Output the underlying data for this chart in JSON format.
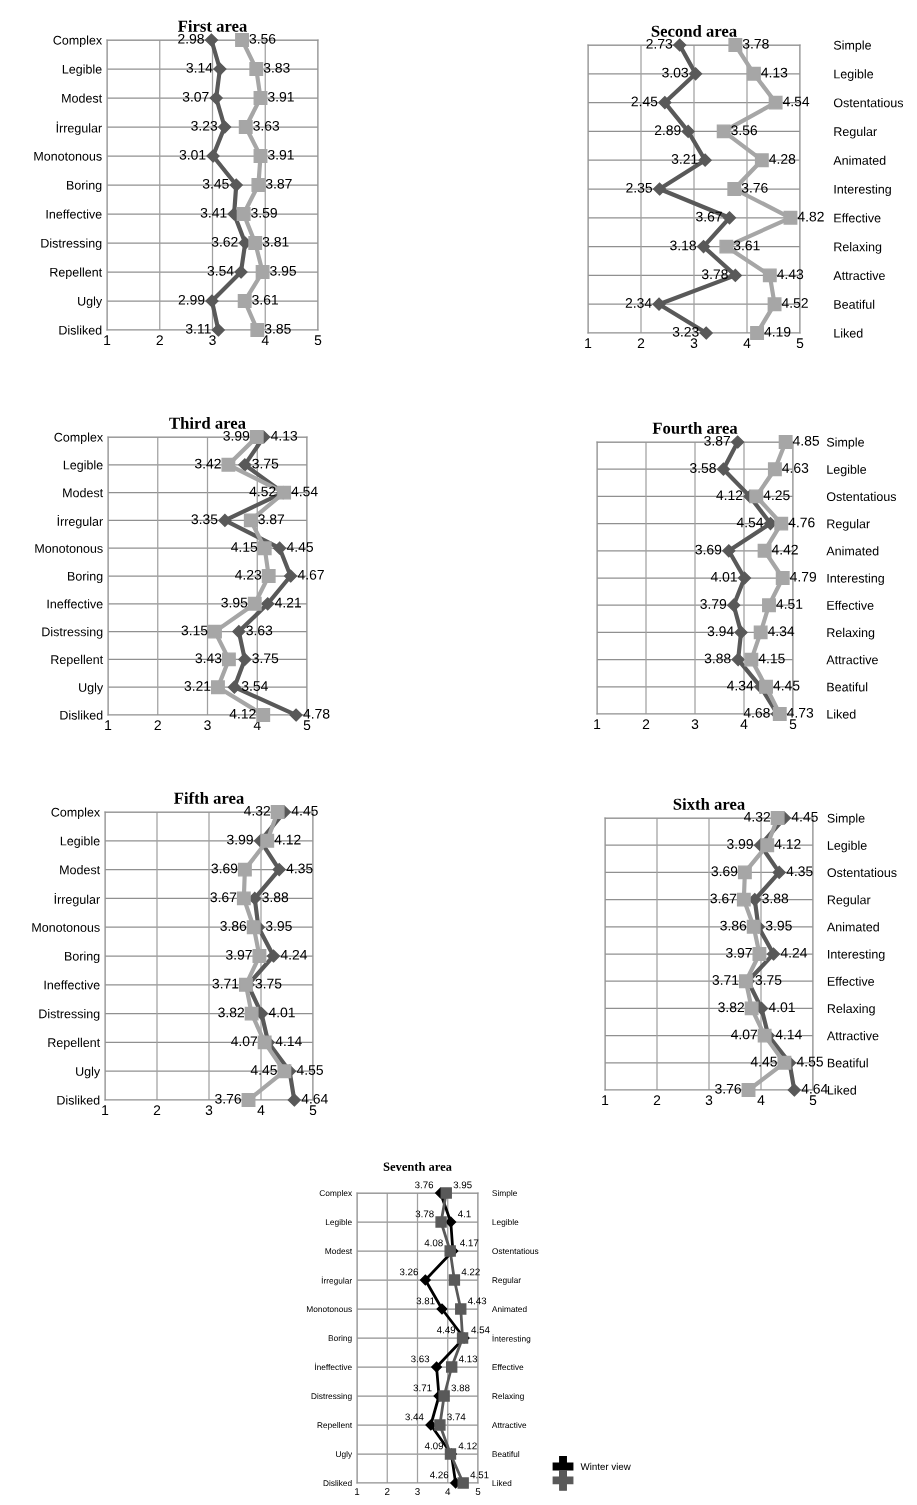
{
  "chart_data": [
    {
      "type": "line",
      "orientation": "horizontal",
      "title": "First area",
      "categories": [
        "Complex",
        "Legible",
        "Modest",
        "İrregular",
        "Monotonous",
        "Boring",
        "Ineffective",
        "Distressing",
        "Repellent",
        "Ugly",
        "Disliked"
      ],
      "xlim": [
        1,
        5
      ],
      "xticks": [
        1,
        2,
        3,
        4,
        5
      ],
      "grid": true,
      "data_labels": true,
      "series": [
        {
          "color": "#595959",
          "marker": "diamond",
          "values": [
            2.98,
            3.14,
            3.07,
            3.23,
            3.01,
            3.45,
            3.41,
            3.62,
            3.54,
            2.99,
            3.11
          ]
        },
        {
          "color": "#a6a6a6",
          "marker": "square",
          "values": [
            3.56,
            3.83,
            3.91,
            3.63,
            3.91,
            3.87,
            3.59,
            3.81,
            3.95,
            3.61,
            3.85
          ]
        }
      ]
    },
    {
      "type": "line",
      "orientation": "horizontal",
      "title": "Second area",
      "categories": [
        null,
        null,
        null,
        null,
        null,
        null,
        null,
        null,
        null,
        null,
        null
      ],
      "y2_categories": [
        "Simple",
        "Legible",
        "Ostentatious",
        "Regular",
        "Animated",
        "Interesting",
        "Effective",
        "Relaxing",
        "Attractive",
        "Beatiful",
        "Liked"
      ],
      "xlim": [
        1,
        5
      ],
      "xticks": [
        1,
        2,
        3,
        4,
        5
      ],
      "grid": true,
      "data_labels": true,
      "series": [
        {
          "color": "#595959",
          "marker": "diamond",
          "values": [
            2.73,
            3.03,
            2.45,
            2.89,
            3.21,
            2.35,
            3.67,
            3.18,
            3.78,
            2.34,
            3.23
          ]
        },
        {
          "color": "#a6a6a6",
          "marker": "square",
          "values": [
            3.78,
            4.13,
            4.54,
            3.56,
            4.28,
            3.76,
            4.82,
            3.61,
            4.43,
            4.52,
            4.19
          ]
        }
      ]
    },
    {
      "type": "line",
      "orientation": "horizontal",
      "title": "Third area",
      "categories": [
        "Complex",
        "Legible",
        "Modest",
        "İrregular",
        "Monotonous",
        "Boring",
        "Ineffective",
        "Distressing",
        "Repellent",
        "Ugly",
        "Disliked"
      ],
      "xlim": [
        1,
        5
      ],
      "xticks": [
        1,
        2,
        3,
        4,
        5
      ],
      "grid": true,
      "data_labels": true,
      "series": [
        {
          "color": "#595959",
          "marker": "diamond",
          "values": [
            4.13,
            3.75,
            4.52,
            3.35,
            4.45,
            4.67,
            4.21,
            3.63,
            3.75,
            3.54,
            4.78
          ]
        },
        {
          "color": "#a6a6a6",
          "marker": "square",
          "values": [
            3.99,
            3.42,
            4.54,
            3.87,
            4.15,
            4.23,
            3.95,
            3.15,
            3.43,
            3.21,
            4.12
          ]
        }
      ]
    },
    {
      "type": "line",
      "orientation": "horizontal",
      "title": "Fourth area",
      "categories": [
        null,
        null,
        null,
        null,
        null,
        null,
        null,
        null,
        null,
        null,
        null
      ],
      "y2_categories": [
        "Simple",
        "Legible",
        "Ostentatious",
        "Regular",
        "Animated",
        "Interesting",
        "Effective",
        "Relaxing",
        "Attractive",
        "Beatiful",
        "Liked"
      ],
      "xlim": [
        1,
        5
      ],
      "xticks": [
        1,
        2,
        3,
        4,
        5
      ],
      "grid": true,
      "data_labels": true,
      "series": [
        {
          "color": "#595959",
          "marker": "diamond",
          "values": [
            3.87,
            3.58,
            4.12,
            4.54,
            3.69,
            4.01,
            3.79,
            3.94,
            3.88,
            4.34,
            4.68
          ]
        },
        {
          "color": "#a6a6a6",
          "marker": "square",
          "values": [
            4.85,
            4.63,
            4.25,
            4.76,
            4.42,
            4.79,
            4.51,
            4.34,
            4.15,
            4.45,
            4.73
          ]
        }
      ]
    },
    {
      "type": "line",
      "orientation": "horizontal",
      "title": "Fifth area",
      "categories": [
        "Complex",
        "Legible",
        "Modest",
        "İrregular",
        "Monotonous",
        "Boring",
        "Ineffective",
        "Distressing",
        "Repellent",
        "Ugly",
        "Disliked"
      ],
      "xlim": [
        1,
        5
      ],
      "xticks": [
        1,
        2,
        3,
        4,
        5
      ],
      "grid": true,
      "data_labels": true,
      "series": [
        {
          "color": "#595959",
          "marker": "diamond",
          "values": [
            4.45,
            3.99,
            4.35,
            3.88,
            3.95,
            4.24,
            3.75,
            4.01,
            4.14,
            4.55,
            4.64
          ]
        },
        {
          "color": "#a6a6a6",
          "marker": "square",
          "values": [
            4.32,
            4.12,
            3.69,
            3.67,
            3.86,
            3.97,
            3.71,
            3.82,
            4.07,
            4.45,
            3.76
          ]
        }
      ]
    },
    {
      "type": "line",
      "orientation": "horizontal",
      "title": "Sixth area",
      "categories": [
        null,
        null,
        null,
        null,
        null,
        null,
        null,
        null,
        null,
        null,
        null
      ],
      "y2_categories": [
        "Simple",
        "Legible",
        "Ostentatious",
        "Regular",
        "Animated",
        "Interesting",
        "Effective",
        "Relaxing",
        "Attractive",
        "Beatiful",
        "Liked"
      ],
      "xlim": [
        1,
        5
      ],
      "xticks": [
        1,
        2,
        3,
        4,
        5
      ],
      "grid": true,
      "data_labels": true,
      "series": [
        {
          "color": "#595959",
          "marker": "diamond",
          "values": [
            4.45,
            3.99,
            4.35,
            3.88,
            3.95,
            4.24,
            3.75,
            4.01,
            4.14,
            4.55,
            4.64
          ]
        },
        {
          "color": "#a6a6a6",
          "marker": "square",
          "values": [
            4.32,
            4.12,
            3.69,
            3.67,
            3.86,
            3.97,
            3.71,
            3.82,
            4.07,
            4.45,
            3.76
          ]
        }
      ]
    },
    {
      "type": "line",
      "orientation": "horizontal",
      "title": "Seventh area",
      "categories": [
        "Complex",
        "Legible",
        "Modest",
        "İrregular",
        "Monotonous",
        "Boring",
        "İneffective",
        "Distressing",
        "Repellent",
        "Ugly",
        "Disliked"
      ],
      "y2_categories": [
        "Simple",
        "Legible",
        "Ostentatious",
        "Regular",
        "Animated",
        "İnteresting",
        "Effective",
        "Relaxing",
        "Attractive",
        "Beatiful",
        "Liked"
      ],
      "xlim": [
        1,
        5
      ],
      "xticks": [
        1,
        2,
        3,
        4,
        5
      ],
      "grid": true,
      "data_labels": true,
      "legend": "right",
      "series": [
        {
          "name": "Winter view",
          "color": "#000000",
          "marker": "diamond",
          "values": [
            3.76,
            4.1,
            4.17,
            3.26,
            3.81,
            4.54,
            3.63,
            3.71,
            3.44,
            4.12,
            4.26
          ]
        },
        {
          "color": "#595959",
          "marker": "square",
          "values": [
            3.95,
            3.78,
            4.08,
            4.22,
            4.43,
            4.49,
            4.13,
            3.88,
            3.74,
            4.09,
            4.51
          ]
        }
      ]
    }
  ]
}
